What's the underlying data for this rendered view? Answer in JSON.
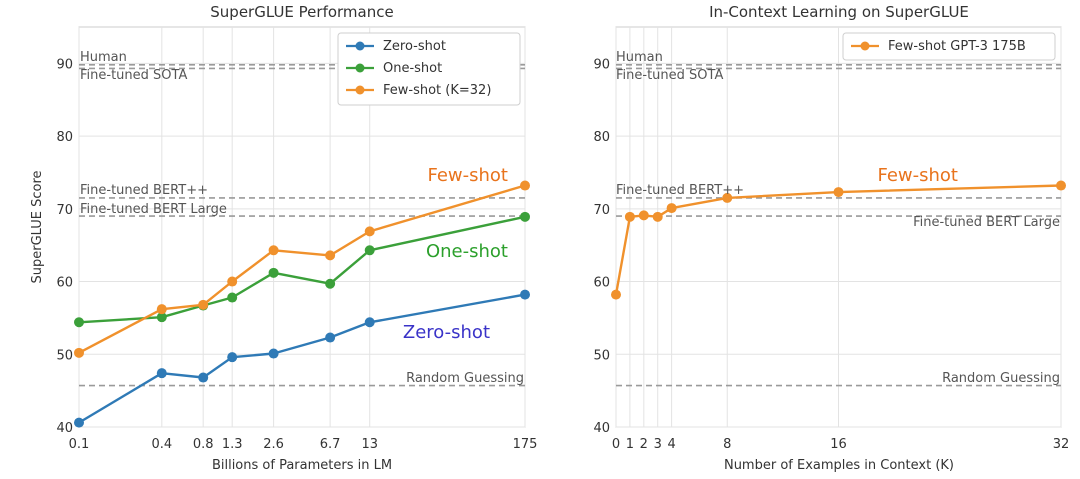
{
  "chart_data": [
    {
      "type": "line",
      "title": "SuperGLUE Performance",
      "xlabel": "Billions of Parameters in LM",
      "ylabel": "SuperGLUE Score",
      "x_scale": "log",
      "xlim": [
        0.1,
        175
      ],
      "ylim": [
        40,
        95
      ],
      "xticks": [
        0.1,
        0.4,
        0.8,
        1.3,
        2.6,
        6.7,
        13,
        175
      ],
      "xtick_labels": [
        "0.1",
        "0.4",
        "0.8",
        "1.3",
        "2.6",
        "6.7",
        "13",
        "175"
      ],
      "yticks": [
        40,
        50,
        60,
        70,
        80,
        90
      ],
      "x": [
        0.1,
        0.4,
        0.8,
        1.3,
        2.6,
        6.7,
        13,
        175
      ],
      "series": [
        {
          "name": "Zero-shot",
          "color": "#2f7ab6",
          "values": [
            40.6,
            47.4,
            46.8,
            49.6,
            50.1,
            52.3,
            54.4,
            58.2
          ]
        },
        {
          "name": "One-shot",
          "color": "#3ba03a",
          "values": [
            54.4,
            55.1,
            56.7,
            57.8,
            61.2,
            59.7,
            64.3,
            68.9
          ]
        },
        {
          "name": "Few-shot (K=32)",
          "color": "#f0912c",
          "values": [
            50.2,
            56.2,
            56.8,
            60.0,
            64.3,
            63.6,
            66.9,
            73.2
          ]
        }
      ],
      "reference_lines": [
        {
          "label": "Human",
          "value": 89.8
        },
        {
          "label": "Fine-tuned SOTA",
          "value": 89.3
        },
        {
          "label": "Fine-tuned BERT++",
          "value": 71.5
        },
        {
          "label": "Fine-tuned BERT Large",
          "value": 69.0
        },
        {
          "label": "Random Guessing",
          "value": 45.7
        }
      ],
      "annotations": [
        {
          "text": "Few-shot",
          "color": "#e8731c"
        },
        {
          "text": "One-shot",
          "color": "#2ca02c"
        },
        {
          "text": "Zero-shot",
          "color": "#3a33c8"
        }
      ],
      "legend_position": "top-right",
      "grid": true
    },
    {
      "type": "line",
      "title": "In-Context Learning on SuperGLUE",
      "xlabel": "Number of Examples in Context (K)",
      "ylabel": "",
      "x_scale": "linear",
      "xlim": [
        0,
        32
      ],
      "ylim": [
        40,
        95
      ],
      "xticks": [
        0,
        1,
        2,
        3,
        4,
        8,
        16,
        32
      ],
      "xtick_labels": [
        "0",
        "1",
        "2",
        "3",
        "4",
        "8",
        "16",
        "32"
      ],
      "yticks": [
        40,
        50,
        60,
        70,
        80,
        90
      ],
      "x": [
        0,
        1,
        2,
        3,
        4,
        8,
        16,
        32
      ],
      "series": [
        {
          "name": "Few-shot GPT-3 175B",
          "color": "#f0912c",
          "values": [
            58.2,
            68.9,
            69.1,
            68.9,
            70.1,
            71.5,
            72.3,
            73.2
          ]
        }
      ],
      "reference_lines": [
        {
          "label": "Human",
          "value": 89.8
        },
        {
          "label": "Fine-tuned SOTA",
          "value": 89.3
        },
        {
          "label": "Fine-tuned BERT++",
          "value": 71.5
        },
        {
          "label": "Fine-tuned BERT Large",
          "value": 69.0
        },
        {
          "label": "Random Guessing",
          "value": 45.7
        }
      ],
      "annotations": [
        {
          "text": "Few-shot",
          "color": "#e8731c"
        }
      ],
      "legend_position": "top-right",
      "grid": true
    }
  ]
}
